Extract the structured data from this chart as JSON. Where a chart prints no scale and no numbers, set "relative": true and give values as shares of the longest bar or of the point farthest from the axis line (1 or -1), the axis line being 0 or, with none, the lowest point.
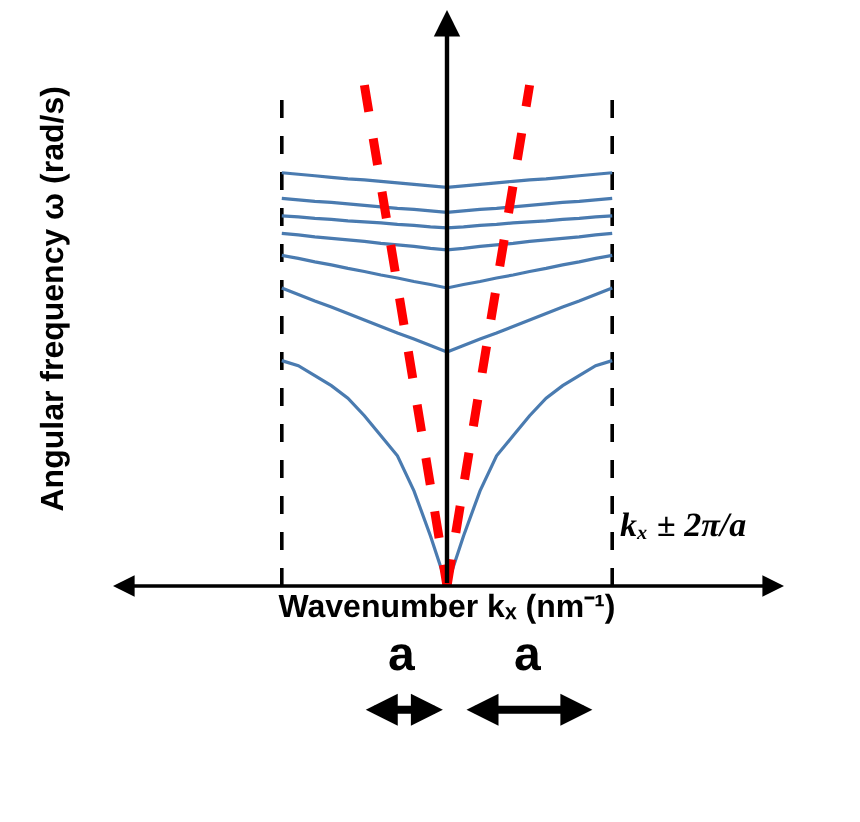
{
  "chart_data": {
    "type": "line",
    "relative": true,
    "xlabel": "Wavenumber kₓ (nm⁻¹)",
    "categories": [
      null,
      null,
      null,
      null,
      null,
      null,
      null,
      null,
      null,
      null,
      null,
      null,
      null,
      null,
      null,
      null,
      null,
      null,
      null,
      null,
      null
    ],
    "series": [
      {
        "color": "#4a7bb0",
        "values": [
          0.825,
          0.822,
          0.819,
          0.816,
          0.813,
          0.811,
          0.808,
          0.805,
          0.802,
          0.799,
          0.796,
          0.799,
          0.802,
          0.805,
          0.808,
          0.811,
          0.813,
          0.816,
          0.819,
          0.822,
          0.825
        ]
      },
      {
        "color": "#4a7bb0",
        "values": [
          0.774,
          0.771,
          0.768,
          0.766,
          0.763,
          0.76,
          0.757,
          0.754,
          0.752,
          0.749,
          0.746,
          0.749,
          0.752,
          0.754,
          0.757,
          0.76,
          0.763,
          0.766,
          0.768,
          0.771,
          0.774
        ]
      },
      {
        "color": "#4a7bb0",
        "values": [
          0.739,
          0.737,
          0.734,
          0.732,
          0.729,
          0.727,
          0.725,
          0.722,
          0.72,
          0.717,
          0.715,
          0.717,
          0.72,
          0.722,
          0.725,
          0.727,
          0.729,
          0.732,
          0.734,
          0.737,
          0.739
        ]
      },
      {
        "color": "#4a7bb0",
        "values": [
          0.704,
          0.701,
          0.697,
          0.694,
          0.691,
          0.688,
          0.684,
          0.681,
          0.678,
          0.674,
          0.671,
          0.674,
          0.678,
          0.681,
          0.684,
          0.688,
          0.691,
          0.694,
          0.697,
          0.701,
          0.704
        ]
      },
      {
        "color": "#4a7bb0",
        "values": [
          0.66,
          0.654,
          0.647,
          0.641,
          0.634,
          0.628,
          0.621,
          0.615,
          0.608,
          0.602,
          0.595,
          0.602,
          0.608,
          0.615,
          0.621,
          0.628,
          0.634,
          0.641,
          0.647,
          0.654,
          0.66
        ]
      },
      {
        "color": "#4a7bb0",
        "values": [
          0.595,
          0.582,
          0.569,
          0.557,
          0.544,
          0.531,
          0.518,
          0.505,
          0.493,
          0.48,
          0.467,
          0.48,
          0.493,
          0.505,
          0.518,
          0.531,
          0.544,
          0.557,
          0.569,
          0.582,
          0.595
        ]
      },
      {
        "color": "#4a7bb0",
        "values": [
          0.45,
          0.44,
          0.42,
          0.4,
          0.375,
          0.34,
          0.3,
          0.26,
          0.19,
          0.1,
          0,
          0.1,
          0.19,
          0.26,
          0.3,
          0.34,
          0.375,
          0.4,
          0.42,
          0.44,
          0.45
        ]
      },
      {
        "color": "#ff0000",
        "line_style": "dashed",
        "values": [
          null,
          null,
          null,
          null,
          null,
          1,
          0.8,
          0.6,
          0.4,
          0.2,
          0,
          null,
          null,
          null,
          null,
          null,
          null,
          null,
          null,
          null,
          null
        ]
      },
      {
        "color": "#ff0000",
        "line_style": "dashed",
        "values": [
          null,
          null,
          null,
          null,
          null,
          null,
          null,
          null,
          null,
          null,
          0,
          0.2,
          0.4,
          0.6,
          0.8,
          1,
          null,
          null,
          null,
          null,
          null
        ]
      }
    ],
    "annotations": [
      "kₓ ± 2π/a",
      "a",
      "a",
      "Angular frequency ω (rad/s)"
    ],
    "marker": "none"
  }
}
